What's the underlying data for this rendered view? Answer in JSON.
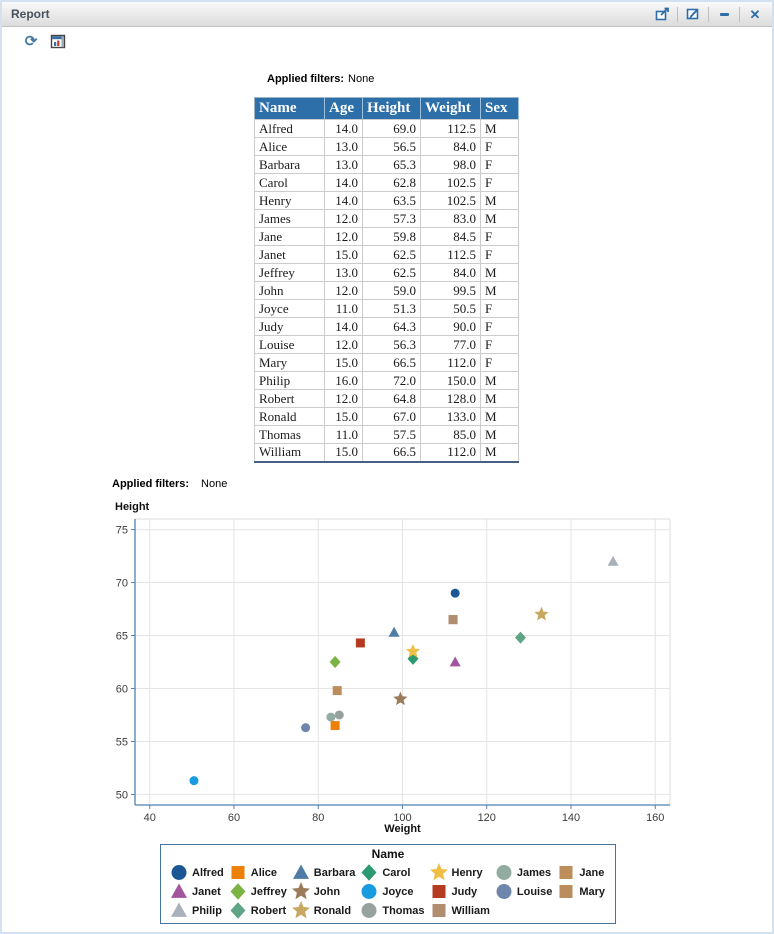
{
  "window": {
    "title": "Report"
  },
  "icons": {
    "refresh_glyph": "⟳",
    "close_glyph": "✕"
  },
  "table_section": {
    "applied_filters_label": "Applied filters:",
    "applied_filters_value": "None",
    "columns": [
      "Name",
      "Age",
      "Height",
      "Weight",
      "Sex"
    ],
    "numeric_columns": [
      1,
      2,
      3
    ],
    "rows": [
      [
        "Alfred",
        "14.0",
        "69.0",
        "112.5",
        "M"
      ],
      [
        "Alice",
        "13.0",
        "56.5",
        "84.0",
        "F"
      ],
      [
        "Barbara",
        "13.0",
        "65.3",
        "98.0",
        "F"
      ],
      [
        "Carol",
        "14.0",
        "62.8",
        "102.5",
        "F"
      ],
      [
        "Henry",
        "14.0",
        "63.5",
        "102.5",
        "M"
      ],
      [
        "James",
        "12.0",
        "57.3",
        "83.0",
        "M"
      ],
      [
        "Jane",
        "12.0",
        "59.8",
        "84.5",
        "F"
      ],
      [
        "Janet",
        "15.0",
        "62.5",
        "112.5",
        "F"
      ],
      [
        "Jeffrey",
        "13.0",
        "62.5",
        "84.0",
        "M"
      ],
      [
        "John",
        "12.0",
        "59.0",
        "99.5",
        "M"
      ],
      [
        "Joyce",
        "11.0",
        "51.3",
        "50.5",
        "F"
      ],
      [
        "Judy",
        "14.0",
        "64.3",
        "90.0",
        "F"
      ],
      [
        "Louise",
        "12.0",
        "56.3",
        "77.0",
        "F"
      ],
      [
        "Mary",
        "15.0",
        "66.5",
        "112.0",
        "F"
      ],
      [
        "Philip",
        "16.0",
        "72.0",
        "150.0",
        "M"
      ],
      [
        "Robert",
        "12.0",
        "64.8",
        "128.0",
        "M"
      ],
      [
        "Ronald",
        "15.0",
        "67.0",
        "133.0",
        "M"
      ],
      [
        "Thomas",
        "11.0",
        "57.5",
        "85.0",
        "M"
      ],
      [
        "William",
        "15.0",
        "66.5",
        "112.0",
        "M"
      ]
    ]
  },
  "chart_section": {
    "applied_filters_label": "Applied filters:",
    "applied_filters_value": "None"
  },
  "chart_data": {
    "type": "scatter",
    "title": "",
    "xlabel": "Weight",
    "ylabel": "Height",
    "legend_title": "Name",
    "xlim": [
      36.5,
      163.5
    ],
    "ylim": [
      49,
      76
    ],
    "xticks": [
      40,
      60,
      80,
      100,
      120,
      140,
      160
    ],
    "yticks": [
      50,
      55,
      60,
      65,
      70,
      75
    ],
    "grid": true,
    "legend_position": "bottom",
    "points": [
      {
        "name": "Alfred",
        "x": 112.5,
        "y": 69.0,
        "marker": "circle",
        "color": "#1A5794"
      },
      {
        "name": "Alice",
        "x": 84.0,
        "y": 56.5,
        "marker": "square",
        "color": "#ED8008"
      },
      {
        "name": "Barbara",
        "x": 98.0,
        "y": 65.3,
        "marker": "triangle",
        "color": "#4E7CA4"
      },
      {
        "name": "Carol",
        "x": 102.5,
        "y": 62.8,
        "marker": "diamond",
        "color": "#2C9A71"
      },
      {
        "name": "Henry",
        "x": 102.5,
        "y": 63.5,
        "marker": "star",
        "color": "#F1BE45"
      },
      {
        "name": "James",
        "x": 83.0,
        "y": 57.3,
        "marker": "circle",
        "color": "#93ACA2"
      },
      {
        "name": "Jane",
        "x": 84.5,
        "y": 59.8,
        "marker": "square",
        "color": "#BD8D5B"
      },
      {
        "name": "Janet",
        "x": 112.5,
        "y": 62.5,
        "marker": "triangle",
        "color": "#A2559E"
      },
      {
        "name": "Jeffrey",
        "x": 84.0,
        "y": 62.5,
        "marker": "diamond",
        "color": "#7BB443"
      },
      {
        "name": "John",
        "x": 99.5,
        "y": 59.0,
        "marker": "star",
        "color": "#9B7B59"
      },
      {
        "name": "Joyce",
        "x": 50.5,
        "y": 51.3,
        "marker": "circle",
        "color": "#189BE1"
      },
      {
        "name": "Judy",
        "x": 90.0,
        "y": 64.3,
        "marker": "square",
        "color": "#B43B20"
      },
      {
        "name": "Louise",
        "x": 77.0,
        "y": 56.3,
        "marker": "circle",
        "color": "#6E86AC"
      },
      {
        "name": "Mary",
        "x": 112.0,
        "y": 66.5,
        "marker": "square",
        "color": "#BA8C5E"
      },
      {
        "name": "Philip",
        "x": 150.0,
        "y": 72.0,
        "marker": "triangle",
        "color": "#A9B1BC"
      },
      {
        "name": "Robert",
        "x": 128.0,
        "y": 64.8,
        "marker": "diamond",
        "color": "#60A486"
      },
      {
        "name": "Ronald",
        "x": 133.0,
        "y": 67.0,
        "marker": "star",
        "color": "#C8A860"
      },
      {
        "name": "Thomas",
        "x": 85.0,
        "y": 57.5,
        "marker": "circle",
        "color": "#97A29E"
      },
      {
        "name": "William",
        "x": 112.0,
        "y": 66.5,
        "marker": "square",
        "color": "#B18D6F"
      }
    ],
    "colors": {
      "axis": "#4E81B4",
      "grid": "#e4e4e4",
      "border": "#dcdcdc",
      "tick_text": "#3d3d3d"
    }
  }
}
